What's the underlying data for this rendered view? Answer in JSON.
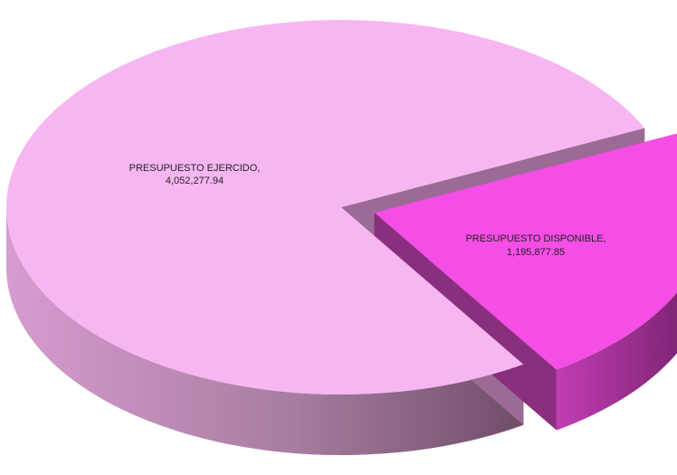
{
  "chart_data": {
    "type": "pie",
    "title": "",
    "categories": [
      "PRESUPUESTO EJERCIDO",
      "PRESUPUESTO DISPONIBLE"
    ],
    "values": [
      4052277.94,
      1195877.85
    ],
    "value_labels": [
      "4,052,277.94",
      "1,195,877.85"
    ],
    "slice_label_lines": [
      [
        "PRESUPUESTO EJERCIDO,",
        "4,052,277.94"
      ],
      [
        "PRESUPUESTO DISPONIBLE,",
        "1,195,877.85"
      ]
    ],
    "colors": {
      "slice_tops": [
        "#F7B6F1",
        "#F44EE6"
      ],
      "slice_sides": [
        "#9C6B95",
        "#8A2E7E"
      ]
    },
    "exploded_slice": "PRESUPUESTO DISPONIBLE",
    "legend": "none",
    "style": "3d-pie"
  }
}
